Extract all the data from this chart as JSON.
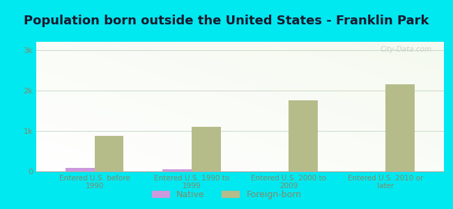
{
  "title": "Population born outside the United States - Franklin Park",
  "categories": [
    "Entered U.S. before\n1990",
    "Entered U.S. 1990 to\n1999",
    "Entered U.S. 2000 to\n2009",
    "Entered U.S. 2010 or\nlater"
  ],
  "native_values": [
    80,
    60,
    0,
    0
  ],
  "foreign_values": [
    880,
    1100,
    1750,
    2150
  ],
  "native_color": "#cc99dd",
  "foreign_color": "#b5bc8a",
  "background_outer": "#00e8f0",
  "background_inner_top": "#eaf5e4",
  "background_inner_bottom": "#f8fff8",
  "yticks": [
    0,
    1000,
    2000,
    3000
  ],
  "ytick_labels": [
    "0",
    "1k",
    "2k",
    "3k"
  ],
  "ylim": [
    0,
    3200
  ],
  "bar_width": 0.3,
  "title_fontsize": 13,
  "tick_label_color": "#888866",
  "axis_label_color": "#888866",
  "watermark": "City-Data.com",
  "legend_native": "Native",
  "legend_foreign": "Foreign-born",
  "grid_color": "#ccddcc",
  "title_color": "#1a1a2e"
}
